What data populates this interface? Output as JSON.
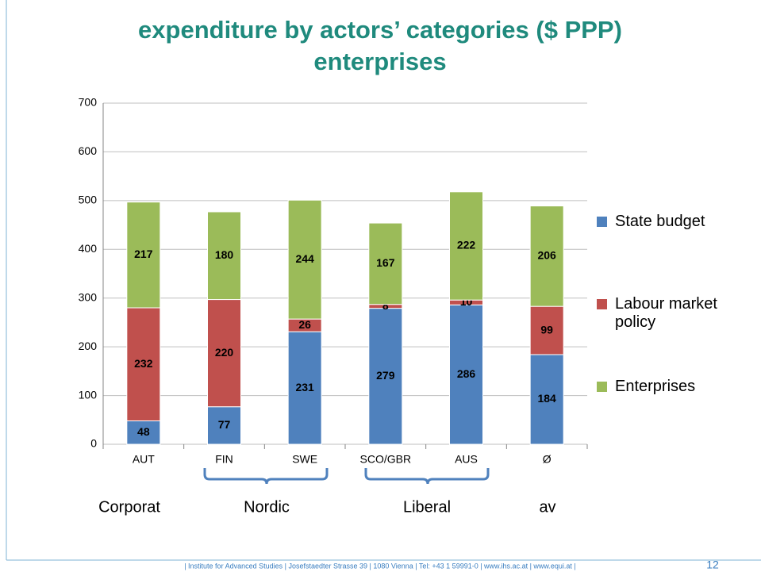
{
  "title": "expenditure by actors’ categories ($ PPP)",
  "subtitle": "enterprises",
  "chart_data": {
    "type": "bar",
    "stacked": true,
    "categories": [
      "AUT",
      "FIN",
      "SWE",
      "SCO/GBR",
      "AUS",
      "Ø"
    ],
    "series": [
      {
        "name": "State budget",
        "color": "#4f81bd",
        "values": [
          48,
          77,
          231,
          279,
          286,
          184
        ]
      },
      {
        "name": "Labour market policy",
        "color": "#c0504d",
        "values": [
          232,
          220,
          26,
          8,
          10,
          99
        ]
      },
      {
        "name": "Enterprises",
        "color": "#9bbb59",
        "values": [
          217,
          180,
          244,
          167,
          222,
          206
        ]
      }
    ],
    "ylim": [
      0,
      700
    ],
    "yticks": [
      0,
      100,
      200,
      300,
      400,
      500,
      600,
      700
    ],
    "grid": true,
    "groups": [
      "Corporat",
      "Nordic",
      "Liberal",
      "av"
    ]
  },
  "footer": "| Institute for Advanced Studies | Josefstaedter Strasse 39 | 1080 Vienna | Tel: +43 1 59991-0 | www.ihs.ac.at | www.equi.at |",
  "page_number": "12"
}
